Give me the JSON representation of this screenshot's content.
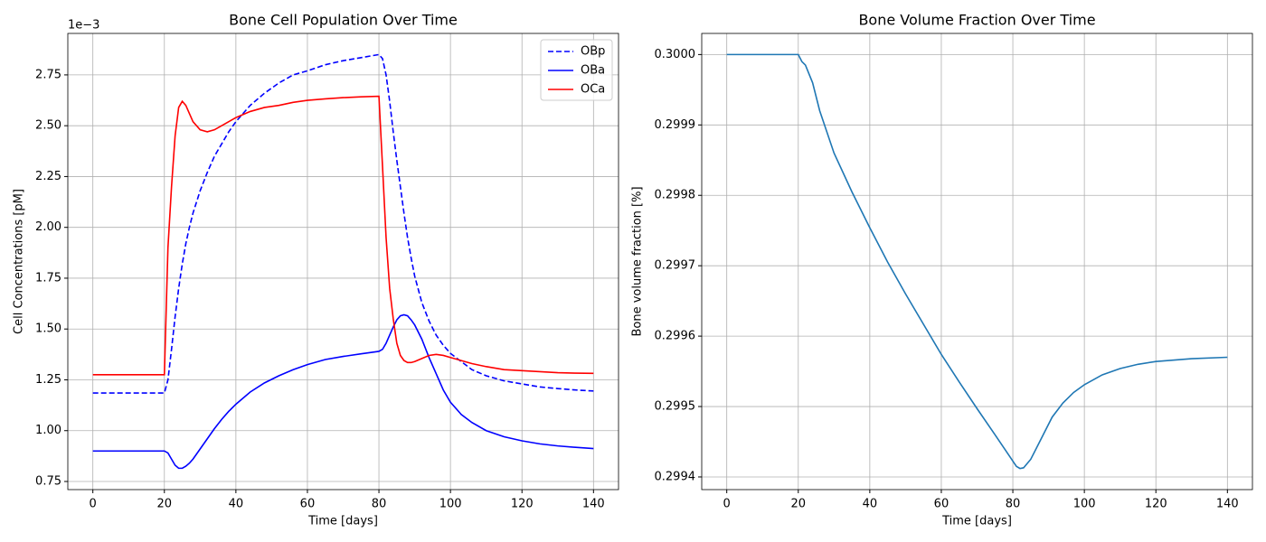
{
  "chart_data": [
    {
      "type": "line",
      "title": "Bone Cell Population Over Time",
      "xlabel": "Time [days]",
      "ylabel": "Cell Concentrations [pM]",
      "y_offset_label": "1e−3",
      "x": [
        0,
        10,
        20,
        21,
        22,
        23,
        24,
        25,
        26,
        27,
        28,
        30,
        32,
        34,
        36,
        38,
        40,
        44,
        48,
        52,
        56,
        60,
        65,
        70,
        75,
        80,
        81,
        82,
        83,
        84,
        85,
        86,
        87,
        88,
        89,
        90,
        92,
        94,
        96,
        98,
        100,
        103,
        106,
        110,
        115,
        120,
        125,
        130,
        135,
        140
      ],
      "series": [
        {
          "name": "OBp",
          "color": "#0000ff",
          "linestyle": "dashed",
          "values": [
            1.185,
            1.185,
            1.185,
            1.25,
            1.4,
            1.56,
            1.7,
            1.82,
            1.92,
            2.0,
            2.07,
            2.18,
            2.27,
            2.35,
            2.41,
            2.47,
            2.52,
            2.6,
            2.66,
            2.71,
            2.75,
            2.77,
            2.8,
            2.82,
            2.835,
            2.85,
            2.83,
            2.75,
            2.62,
            2.47,
            2.33,
            2.2,
            2.07,
            1.95,
            1.85,
            1.76,
            1.63,
            1.54,
            1.47,
            1.42,
            1.38,
            1.34,
            1.3,
            1.27,
            1.245,
            1.23,
            1.215,
            1.207,
            1.2,
            1.195
          ]
        },
        {
          "name": "OBa",
          "color": "#0000ff",
          "linestyle": "solid",
          "values": [
            0.9,
            0.9,
            0.9,
            0.89,
            0.86,
            0.83,
            0.815,
            0.815,
            0.825,
            0.84,
            0.86,
            0.91,
            0.96,
            1.01,
            1.055,
            1.095,
            1.13,
            1.19,
            1.235,
            1.27,
            1.3,
            1.325,
            1.35,
            1.365,
            1.378,
            1.39,
            1.4,
            1.43,
            1.47,
            1.51,
            1.545,
            1.565,
            1.57,
            1.565,
            1.545,
            1.52,
            1.45,
            1.36,
            1.28,
            1.2,
            1.14,
            1.08,
            1.04,
            1.0,
            0.97,
            0.95,
            0.935,
            0.925,
            0.918,
            0.912
          ]
        },
        {
          "name": "OCa",
          "color": "#ff0000",
          "linestyle": "solid",
          "values": [
            1.275,
            1.275,
            1.275,
            1.9,
            2.2,
            2.45,
            2.59,
            2.62,
            2.6,
            2.56,
            2.52,
            2.48,
            2.47,
            2.48,
            2.5,
            2.52,
            2.54,
            2.57,
            2.59,
            2.6,
            2.615,
            2.625,
            2.632,
            2.638,
            2.642,
            2.645,
            2.3,
            1.95,
            1.7,
            1.55,
            1.43,
            1.37,
            1.345,
            1.335,
            1.335,
            1.34,
            1.355,
            1.37,
            1.375,
            1.37,
            1.36,
            1.345,
            1.33,
            1.315,
            1.3,
            1.295,
            1.29,
            1.285,
            1.283,
            1.282
          ]
        }
      ],
      "xlim": [
        -7,
        147
      ],
      "xticks": [
        0,
        20,
        40,
        60,
        80,
        100,
        120,
        140
      ],
      "ylim": [
        0.71,
        2.954
      ],
      "yticks": [
        0.75,
        1.0,
        1.25,
        1.5,
        1.75,
        2.0,
        2.25,
        2.5,
        2.75
      ],
      "grid": true,
      "legend": "upper right"
    },
    {
      "type": "line",
      "title": "Bone Volume Fraction Over Time",
      "xlabel": "Time [days]",
      "ylabel": "Bone volume fraction [%]",
      "x": [
        0,
        20,
        21,
        22,
        24,
        26,
        28,
        30,
        35,
        40,
        45,
        50,
        55,
        60,
        65,
        70,
        75,
        79,
        81,
        82,
        83,
        85,
        88,
        91,
        94,
        97,
        100,
        105,
        110,
        115,
        120,
        130,
        140
      ],
      "series": [
        {
          "name": "Bone volume fraction",
          "color": "#1f77b4",
          "linestyle": "solid",
          "values": [
            0.3,
            0.3,
            0.29999,
            0.299985,
            0.29996,
            0.29992,
            0.29989,
            0.29986,
            0.299805,
            0.299754,
            0.299705,
            0.29966,
            0.299617,
            0.299574,
            0.299535,
            0.299497,
            0.29946,
            0.29943,
            0.299415,
            0.299412,
            0.299413,
            0.299425,
            0.299455,
            0.299485,
            0.299505,
            0.29952,
            0.299531,
            0.299545,
            0.299554,
            0.29956,
            0.299564,
            0.299568,
            0.29957
          ]
        }
      ],
      "xlim": [
        -7,
        147
      ],
      "xticks": [
        0,
        20,
        40,
        60,
        80,
        100,
        120,
        140
      ],
      "ylim": [
        0.299382,
        0.30003
      ],
      "yticks": [
        {
          "value": 0.2994,
          "label": "0.2994"
        },
        {
          "value": 0.2995,
          "label": "0.2995"
        },
        {
          "value": 0.2996,
          "label": "0.2996"
        },
        {
          "value": 0.2997,
          "label": "0.2997"
        },
        {
          "value": 0.2998,
          "label": "0.2998"
        },
        {
          "value": 0.2999,
          "label": "0.2999"
        },
        {
          "value": 0.3,
          "label": "0.3000"
        }
      ],
      "grid": true
    }
  ]
}
